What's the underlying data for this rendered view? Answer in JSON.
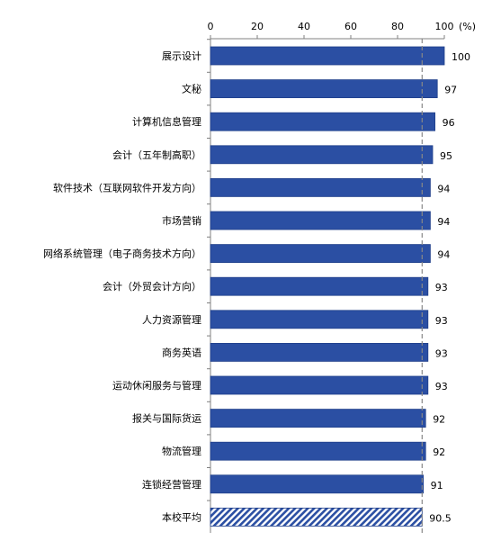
{
  "chart_data": {
    "type": "bar",
    "orientation": "horizontal",
    "title": "",
    "xlabel": "",
    "ylabel": "",
    "unit_label": "(%)",
    "xlim": [
      0,
      100
    ],
    "xticks": [
      "0",
      "20",
      "40",
      "60",
      "80",
      "100"
    ],
    "reference_line": {
      "value": 90.5,
      "style": "dashed",
      "color": "#888888"
    },
    "colors": {
      "bar": "#2b4fa3",
      "bar_edge": "#1f3f8a",
      "average_hatch": "#2b4fa3",
      "axis": "#808080"
    },
    "categories": [
      "展示设计",
      "文秘",
      "计算机信息管理",
      "会计（五年制高职）",
      "软件技术（互联网软件开发方向）",
      "市场营销",
      "网络系统管理（电子商务技术方向）",
      "会计（外贸会计方向）",
      "人力资源管理",
      "商务英语",
      "运动休闲服务与管理",
      "报关与国际货运",
      "物流管理",
      "连锁经营管理",
      "本校平均"
    ],
    "values": [
      100,
      97,
      96,
      95,
      94,
      94,
      94,
      93,
      93,
      93,
      93,
      92,
      92,
      91,
      90.5
    ],
    "value_labels": [
      "100",
      "97",
      "96",
      "95",
      "94",
      "94",
      "94",
      "93",
      "93",
      "93",
      "93",
      "92",
      "92",
      "91",
      "90.5"
    ],
    "hatched_categories": [
      "本校平均"
    ]
  }
}
